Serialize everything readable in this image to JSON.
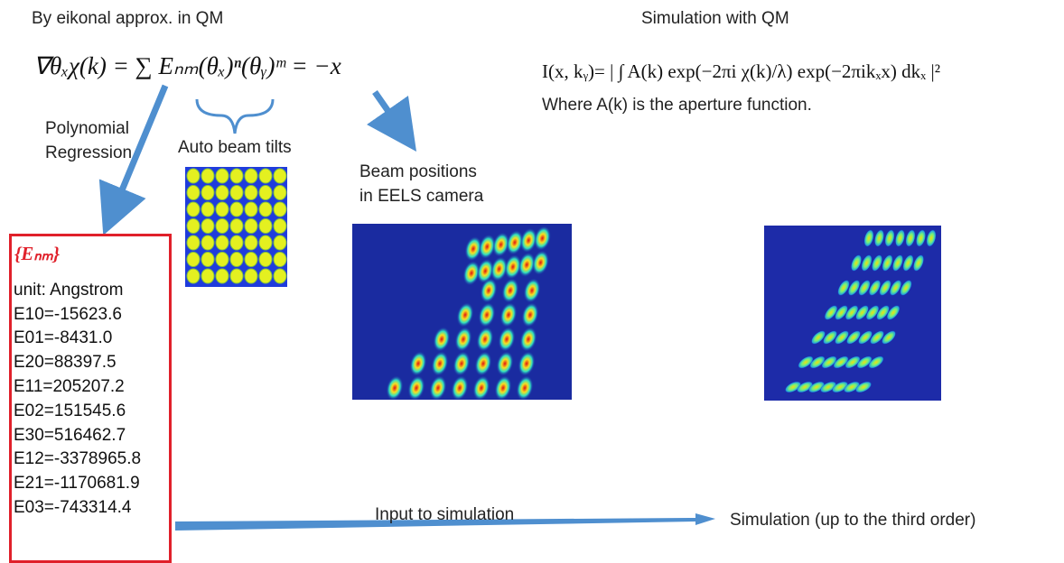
{
  "left": {
    "heading": "By eikonal approx. in QM",
    "equation": "∇θₓχ(k) = ∑ Eₙₘ(θₓ)ⁿ(θᵧ)ᵐ = −x",
    "regression_label": [
      "Polynomial",
      "Regression"
    ],
    "tilts_label": "Auto beam tilts",
    "positions_label": [
      "Beam positions",
      "in EELS camera"
    ]
  },
  "right": {
    "heading": "Simulation with QM",
    "equation": "I(x, kᵧ)= | ∫ A(k) exp(−2πi χ(k)/λ) exp(−2πikₓx) dkₓ |²",
    "note": "Where A(k) is the aperture function."
  },
  "coefficients": {
    "title": "{Eₙₘ}",
    "unit": "unit: Angstrom",
    "items": [
      "E10=-15623.6",
      "E01=-8431.0",
      "E20=88397.5",
      "E11=205207.2",
      "E02=151545.6",
      "E30=516462.7",
      "E12=-3378965.8",
      "E21=-1170681.9",
      "E03=-743314.4"
    ]
  },
  "flow": {
    "input_label": "Input to simulation",
    "output_label": "Simulation (up to the third order)"
  }
}
